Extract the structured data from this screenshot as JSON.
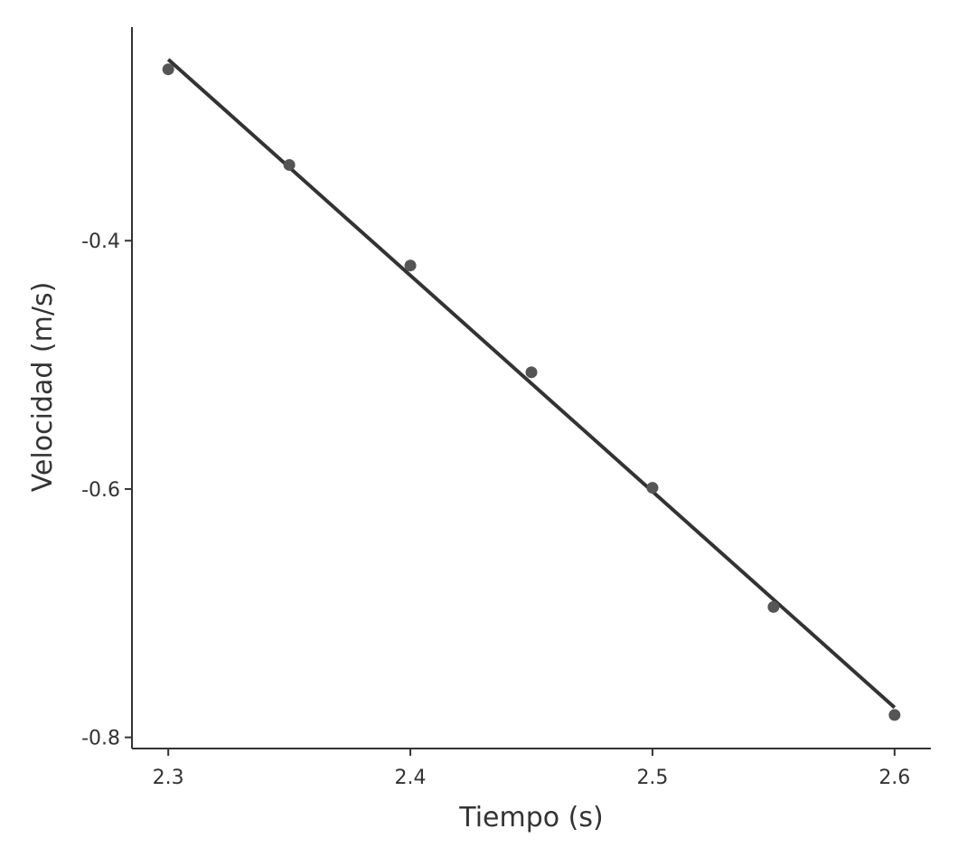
{
  "chart_data": {
    "type": "scatter",
    "xlabel": "Tiempo (s)",
    "ylabel": "Velocidad (m/s)",
    "x_ticks": [
      {
        "value": 2.3,
        "label": "2.3"
      },
      {
        "value": 2.4,
        "label": "2.4"
      },
      {
        "value": 2.5,
        "label": "2.5"
      },
      {
        "value": 2.6,
        "label": "2.6"
      }
    ],
    "y_ticks": [
      {
        "value": -0.4,
        "label": "-0.4"
      },
      {
        "value": -0.6,
        "label": "-0.6"
      },
      {
        "value": -0.8,
        "label": "-0.8"
      }
    ],
    "xlim": [
      2.285,
      2.615
    ],
    "ylim": [
      -0.809,
      -0.228
    ],
    "grid": false,
    "points": [
      {
        "x": 2.3,
        "y": -0.262
      },
      {
        "x": 2.35,
        "y": -0.339
      },
      {
        "x": 2.4,
        "y": -0.42
      },
      {
        "x": 2.45,
        "y": -0.506
      },
      {
        "x": 2.5,
        "y": -0.599
      },
      {
        "x": 2.55,
        "y": -0.695
      },
      {
        "x": 2.6,
        "y": -0.782
      }
    ],
    "fit_line": {
      "x": [
        2.3,
        2.6
      ],
      "y": [
        -0.254,
        -0.776
      ]
    },
    "colors": {
      "points": "#555555",
      "line": "#333333",
      "axis": "#333333"
    }
  }
}
